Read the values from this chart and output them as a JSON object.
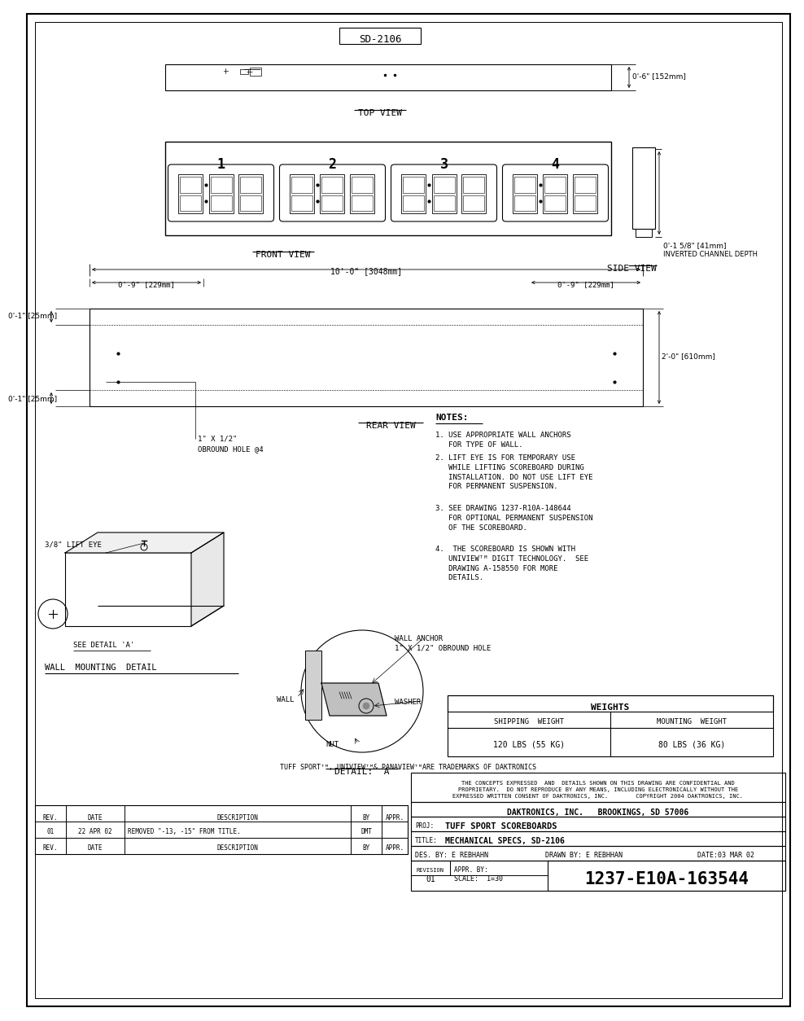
{
  "bg_color": "#ffffff",
  "title_box": "SD-2106",
  "top_view_label": "TOP VIEW",
  "front_view_label": "FRONT VIEW",
  "side_view_label": "SIDE VIEW",
  "rear_view_label": "REAR VIEW",
  "notes_label": "NOTES:",
  "note1": "1. USE APPROPRIATE WALL ANCHORS\n   FOR TYPE OF WALL.",
  "note2": "2. LIFT EYE IS FOR TEMPORARY USE\n   WHILE LIFTING SCOREBOARD DURING\n   INSTALLATION. DO NOT USE LIFT EYE\n   FOR PERMANENT SUSPENSION.",
  "note3": "3. SEE DRAWING 1237-R10A-148644\n   FOR OPTIONAL PERMANENT SUSPENSION\n   OF THE SCOREBOARD.",
  "note4": "4.  THE SCOREBOARD IS SHOWN WITH\n   UNIVIEWᵀᴹ DIGIT TECHNOLOGY.  SEE\n   DRAWING A-158550 FOR MORE\n   DETAILS.",
  "dim_top_depth": "0'-6\" [152mm]",
  "dim_front_depth": "0'-1 5/8\" [41mm]",
  "dim_front_depth2": "INVERTED CHANNEL DEPTH",
  "dim_width": "10'-0\" [3048mm]",
  "dim_left_margin": "0'-9\" [229mm]",
  "dim_right_margin": "0'-9\" [229mm]",
  "dim_height": "2'-0\" [610mm]",
  "dim_top_margin": "0'-1\" [25mm]",
  "dim_bot_margin": "0'-1\" [25mm]",
  "hole_label": "1\" X 1/2\"\nOBROUND HOLE @4",
  "lift_eye_label": "3/8\" LIFT EYE",
  "wall_label": "WALL",
  "wall_anchor_label": "WALL ANCHOR",
  "wall_anchor_label2": "1\" X 1/2\" OBROUND HOLE",
  "washer_label": "WASHER",
  "nut_label": "NUT",
  "see_detail_label": "SEE DETAIL 'A'",
  "wall_mounting_label": "WALL  MOUNTING  DETAIL",
  "detail_a_label": "DETAIL:  A",
  "weights_label": "WEIGHTS",
  "shipping_label": "SHIPPING  WEIGHT",
  "mounting_label": "MOUNTING  WEIGHT",
  "shipping_val": "120 LBS (55 KG)",
  "mounting_val": "80 LBS (36 KG)",
  "trademark_line": "TUFF SPORTᵀᴹ, UNIVIEWᵀᴹ& PANAVIEWᵀᴹARE TRADEMARKS OF DAKTRONICS",
  "confidential_text": "THE CONCEPTS EXPRESSED  AND  DETAILS SHOWN ON THIS DRAWING ARE CONFIDENTIAL AND\nPROPRIETARY.  DO NOT REPRODUCE BY ANY MEANS, INCLUDING ELECTRONICALLY WITHOUT THE\nEXPRESSED WRITTEN CONSENT OF DAKTRONICS, INC.        COPYRIGHT 2004 DAKTRONICS, INC.",
  "company_line": "DAKTRONICS, INC.   BROOKINGS, SD 57006",
  "proj_label": "PROJ:",
  "proj_val": "TUFF SPORT SCOREBOARDS",
  "title_label": "TITLE:",
  "title_val": "MECHANICAL SPECS, SD-2106",
  "des_label": "DES. BY:",
  "des_val": "E REBHAHN",
  "drawn_label": "DRAWN BY:",
  "drawn_val": "E REBHHAN",
  "date_label": "DATE:",
  "date_val": "03 MAR 02",
  "revision_label": "REVISION",
  "revision_val": "01",
  "appr_label": "APPR. BY:",
  "scale_label": "SCALE:",
  "scale_val": "1=30",
  "dwg_num": "1237-E10A-163544",
  "rev_label": "REV.",
  "date_col": "DATE",
  "desc_col": "DESCRIPTION",
  "by_col": "BY",
  "appr_col": "APPR.",
  "rev_row1_num": "01",
  "rev_row1_date": "22 APR 02",
  "rev_row1_desc": "REMOVED \"-13, -15\" FROM TITLE.",
  "rev_row1_by": "DMT"
}
